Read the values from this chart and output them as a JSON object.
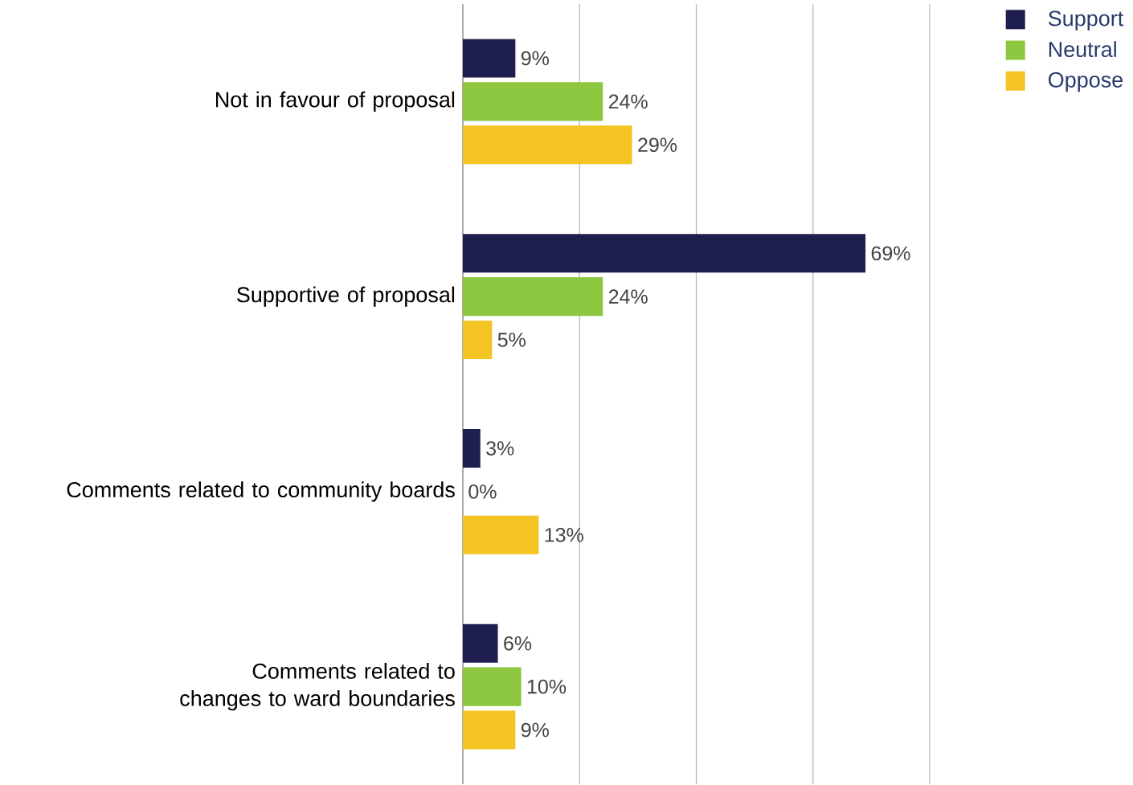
{
  "chart_data": {
    "type": "bar",
    "orientation": "horizontal",
    "categories": [
      "Not in favour of proposal",
      "Supportive of proposal",
      "Comments related to community boards",
      "Comments related to changes to ward boundaries"
    ],
    "series": [
      {
        "name": "Support",
        "color": "#1e1f4f",
        "values": [
          9,
          69,
          3,
          6
        ],
        "value_labels": [
          "9%",
          "69%",
          "3%",
          "6%"
        ]
      },
      {
        "name": "Neutral",
        "color": "#8dc63f",
        "values": [
          24,
          24,
          0,
          10
        ],
        "value_labels": [
          "24%",
          "24%",
          "0%",
          "10%"
        ]
      },
      {
        "name": "Oppose",
        "color": "#f4c324",
        "values": [
          29,
          5,
          13,
          9
        ],
        "value_labels": [
          "29%",
          "5%",
          "13%",
          "9%"
        ]
      }
    ],
    "xlim": [
      0,
      80
    ],
    "xticks": [
      {
        "value": 20,
        "label": null
      },
      {
        "value": 40,
        "label": null
      },
      {
        "value": 60,
        "label": null
      },
      {
        "value": 80,
        "label": null
      }
    ],
    "grid": "x",
    "tick_labels": "y",
    "legend": "top right"
  }
}
